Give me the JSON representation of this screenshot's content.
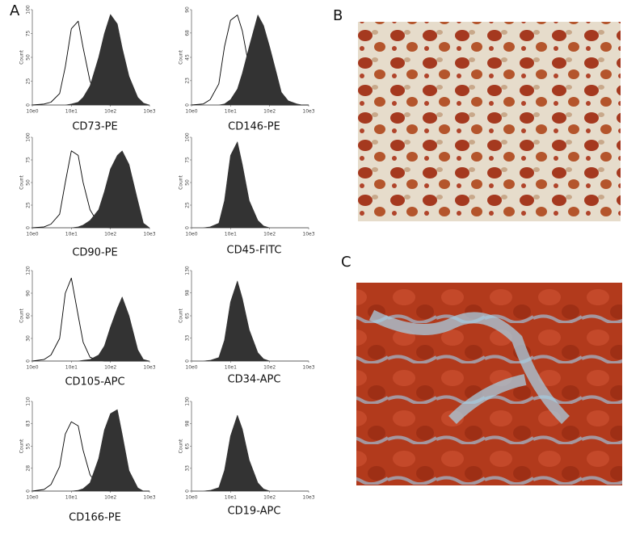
{
  "panel_labels": [
    "A",
    "B",
    "C"
  ],
  "chart_data": [
    {
      "type": "histogram",
      "title": "CD73-PE",
      "y_label": "Count",
      "log_x": true,
      "x": [
        1,
        2,
        3,
        5,
        7,
        10,
        15,
        20,
        30,
        50,
        70,
        100,
        150,
        200,
        300,
        500,
        700,
        1000
      ],
      "xlim": [
        1,
        1000
      ],
      "xticks": [
        {
          "value": 1,
          "label": "10e0"
        },
        {
          "value": 10,
          "label": "10e1"
        },
        {
          "value": 100,
          "label": "10e2"
        },
        {
          "value": 1000,
          "label": "10e3"
        }
      ],
      "ylim": [
        0,
        100
      ],
      "yticks": [
        0,
        25,
        50,
        75,
        100
      ],
      "series": [
        {
          "color": "#000000",
          "style": "outline",
          "values": [
            0,
            1,
            3,
            12,
            40,
            80,
            88,
            60,
            25,
            5,
            1,
            0,
            0,
            0,
            0,
            0,
            0,
            0
          ]
        },
        {
          "color": "#333333",
          "style": "filled",
          "values": [
            0,
            0,
            0,
            0,
            0,
            1,
            3,
            8,
            20,
            50,
            75,
            95,
            85,
            60,
            30,
            8,
            2,
            0
          ]
        }
      ]
    },
    {
      "type": "histogram",
      "title": "CD146-PE",
      "y_label": "Count",
      "log_x": true,
      "x": [
        1,
        2,
        3,
        5,
        7,
        10,
        15,
        20,
        30,
        50,
        70,
        100,
        150,
        200,
        300,
        500,
        700,
        1000
      ],
      "xlim": [
        1,
        1000
      ],
      "xticks": [
        {
          "value": 1,
          "label": "10e0"
        },
        {
          "value": 10,
          "label": "10e1"
        },
        {
          "value": 100,
          "label": "10e2"
        },
        {
          "value": 1000,
          "label": "10e3"
        }
      ],
      "ylim": [
        0,
        90
      ],
      "yticks": [
        0,
        23,
        45,
        68,
        90
      ],
      "series": [
        {
          "color": "#000000",
          "style": "outline",
          "values": [
            0,
            1,
            5,
            20,
            55,
            80,
            85,
            70,
            35,
            10,
            2,
            0,
            0,
            0,
            0,
            0,
            0,
            0
          ]
        },
        {
          "color": "#333333",
          "style": "filled",
          "values": [
            0,
            0,
            0,
            0,
            1,
            5,
            15,
            30,
            55,
            85,
            75,
            55,
            30,
            12,
            4,
            1,
            0,
            0
          ]
        }
      ]
    },
    {
      "type": "histogram",
      "title": "CD90-PE",
      "y_label": "Count",
      "log_x": true,
      "x": [
        1,
        2,
        3,
        5,
        7,
        10,
        15,
        20,
        30,
        50,
        70,
        100,
        150,
        200,
        300,
        500,
        700,
        1000
      ],
      "xlim": [
        1,
        1000
      ],
      "xticks": [
        {
          "value": 1,
          "label": "10e0"
        },
        {
          "value": 10,
          "label": "10e1"
        },
        {
          "value": 100,
          "label": "10e2"
        },
        {
          "value": 1000,
          "label": "10e3"
        }
      ],
      "ylim": [
        0,
        100
      ],
      "yticks": [
        0,
        25,
        50,
        75,
        100
      ],
      "series": [
        {
          "color": "#000000",
          "style": "outline",
          "values": [
            0,
            1,
            4,
            15,
            50,
            85,
            80,
            50,
            20,
            4,
            1,
            0,
            0,
            0,
            0,
            0,
            0,
            0
          ]
        },
        {
          "color": "#333333",
          "style": "filled",
          "values": [
            0,
            0,
            0,
            0,
            0,
            0,
            1,
            3,
            8,
            20,
            40,
            65,
            80,
            85,
            70,
            30,
            5,
            0
          ]
        }
      ]
    },
    {
      "type": "histogram",
      "title": "CD45-FITC",
      "y_label": "Count",
      "log_x": true,
      "x": [
        1,
        2,
        3,
        5,
        7,
        10,
        15,
        20,
        30,
        50,
        70,
        100,
        150,
        200,
        300,
        500,
        700,
        1000
      ],
      "xlim": [
        1,
        1000
      ],
      "xticks": [
        {
          "value": 1,
          "label": "10e0"
        },
        {
          "value": 10,
          "label": "10e1"
        },
        {
          "value": 100,
          "label": "10e2"
        },
        {
          "value": 1000,
          "label": "10e3"
        }
      ],
      "ylim": [
        0,
        100
      ],
      "yticks": [
        0,
        25,
        50,
        75,
        100
      ],
      "series": [
        {
          "color": "#333333",
          "style": "filled",
          "values": [
            0,
            0,
            1,
            5,
            30,
            80,
            95,
            70,
            30,
            8,
            2,
            0,
            0,
            0,
            0,
            0,
            0,
            0
          ]
        }
      ]
    },
    {
      "type": "histogram",
      "title": "CD105-APC",
      "y_label": "Count",
      "log_x": true,
      "x": [
        1,
        2,
        3,
        5,
        7,
        10,
        15,
        20,
        30,
        50,
        70,
        100,
        150,
        200,
        300,
        500,
        700,
        1000
      ],
      "xlim": [
        1,
        1000
      ],
      "xticks": [
        {
          "value": 1,
          "label": "10e0"
        },
        {
          "value": 10,
          "label": "10e1"
        },
        {
          "value": 100,
          "label": "10e2"
        },
        {
          "value": 1000,
          "label": "10e3"
        }
      ],
      "ylim": [
        0,
        120
      ],
      "yticks": [
        0,
        30,
        60,
        90,
        120
      ],
      "series": [
        {
          "color": "#000000",
          "style": "outline",
          "values": [
            0,
            2,
            8,
            30,
            90,
            110,
            60,
            25,
            5,
            1,
            0,
            0,
            0,
            0,
            0,
            0,
            0,
            0
          ]
        },
        {
          "color": "#333333",
          "style": "filled",
          "values": [
            0,
            0,
            0,
            0,
            0,
            0,
            0,
            1,
            2,
            8,
            20,
            45,
            70,
            85,
            60,
            15,
            2,
            0
          ]
        }
      ]
    },
    {
      "type": "histogram",
      "title": "CD34-APC",
      "y_label": "Count",
      "log_x": true,
      "x": [
        1,
        2,
        3,
        5,
        7,
        10,
        15,
        20,
        30,
        50,
        70,
        100,
        150,
        200,
        300,
        500,
        700,
        1000
      ],
      "xlim": [
        1,
        1000
      ],
      "xticks": [
        {
          "value": 1,
          "label": "10e0"
        },
        {
          "value": 10,
          "label": "10e1"
        },
        {
          "value": 100,
          "label": "10e2"
        },
        {
          "value": 1000,
          "label": "10e3"
        }
      ],
      "ylim": [
        0,
        130
      ],
      "yticks": [
        0,
        33,
        65,
        98,
        130
      ],
      "series": [
        {
          "color": "#333333",
          "style": "filled",
          "values": [
            0,
            0,
            1,
            5,
            30,
            85,
            115,
            90,
            45,
            12,
            3,
            0,
            0,
            0,
            0,
            0,
            0,
            0
          ]
        }
      ]
    },
    {
      "type": "histogram",
      "title": "CD166-PE",
      "y_label": "Count",
      "log_x": true,
      "x": [
        1,
        2,
        3,
        5,
        7,
        10,
        15,
        20,
        30,
        50,
        70,
        100,
        150,
        200,
        300,
        500,
        700,
        1000
      ],
      "xlim": [
        1,
        1000
      ],
      "xticks": [
        {
          "value": 1,
          "label": "10e0"
        },
        {
          "value": 10,
          "label": "10e1"
        },
        {
          "value": 100,
          "label": "10e2"
        },
        {
          "value": 1000,
          "label": "10e3"
        }
      ],
      "ylim": [
        0,
        110
      ],
      "yticks": [
        0,
        28,
        55,
        83,
        110
      ],
      "series": [
        {
          "color": "#000000",
          "style": "outline",
          "values": [
            0,
            2,
            8,
            30,
            70,
            85,
            80,
            50,
            20,
            5,
            1,
            0,
            0,
            0,
            0,
            0,
            0,
            0
          ]
        },
        {
          "color": "#333333",
          "style": "filled",
          "values": [
            0,
            0,
            0,
            0,
            0,
            0,
            1,
            3,
            10,
            40,
            75,
            95,
            100,
            70,
            25,
            4,
            0,
            0
          ]
        }
      ]
    },
    {
      "type": "histogram",
      "title": "CD19-APC",
      "y_label": "Count",
      "log_x": true,
      "x": [
        1,
        2,
        3,
        5,
        7,
        10,
        15,
        20,
        30,
        50,
        70,
        100,
        150,
        200,
        300,
        500,
        700,
        1000
      ],
      "xlim": [
        1,
        1000
      ],
      "xticks": [
        {
          "value": 1,
          "label": "10e0"
        },
        {
          "value": 10,
          "label": "10e1"
        },
        {
          "value": 100,
          "label": "10e2"
        },
        {
          "value": 1000,
          "label": "10e3"
        }
      ],
      "ylim": [
        0,
        130
      ],
      "yticks": [
        0,
        33,
        65,
        98,
        130
      ],
      "series": [
        {
          "color": "#333333",
          "style": "filled",
          "values": [
            0,
            0,
            1,
            5,
            30,
            80,
            110,
            90,
            45,
            12,
            3,
            0,
            0,
            0,
            0,
            0,
            0,
            0
          ]
        }
      ]
    }
  ]
}
